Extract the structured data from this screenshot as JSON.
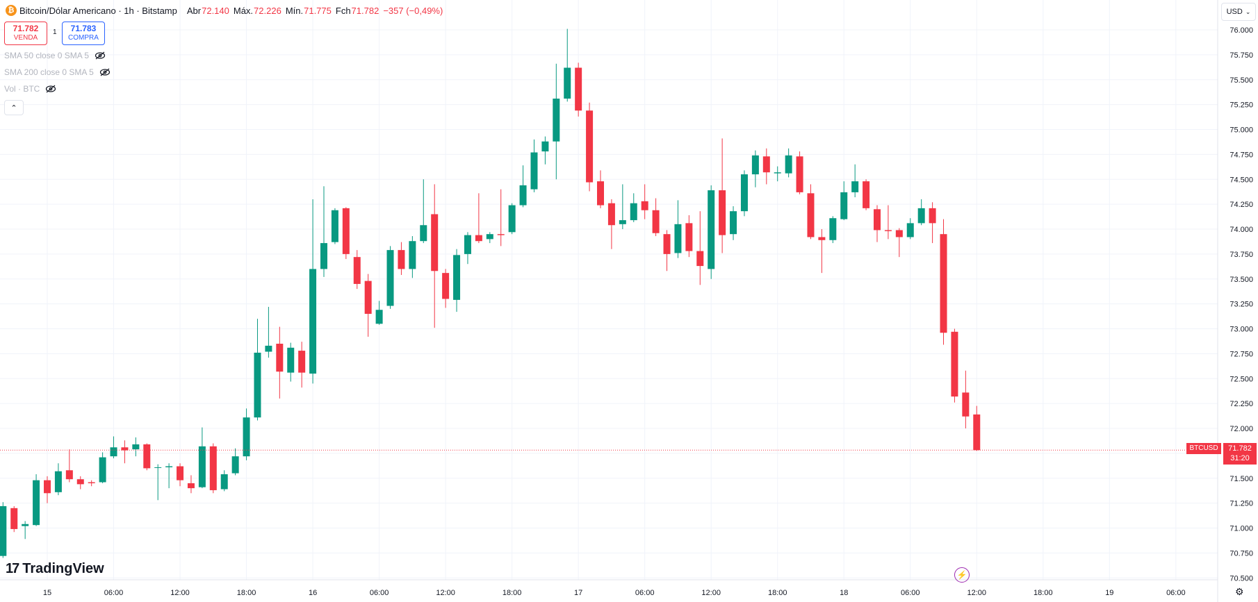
{
  "header": {
    "coin_glyph": "₿",
    "symbol_title": "Bitcoin/Dólar Americano · 1h · Bitstamp",
    "open_label": "Abr",
    "open_value": "72.140",
    "high_label": "Máx.",
    "high_value": "72.226",
    "low_label": "Mín.",
    "low_value": "71.775",
    "close_label": "Fch",
    "close_value": "71.782",
    "change": "−357 (−0,49%)"
  },
  "quotes": {
    "sell_price": "71.782",
    "sell_label": "VENDA",
    "spread": "1",
    "buy_price": "71.783",
    "buy_label": "COMPRA"
  },
  "indicators": [
    "SMA 50 close 0 SMA 5",
    "SMA 200 close 0 SMA 5",
    "Vol · BTC"
  ],
  "collapse_glyph": "⌃",
  "currency_selector": "USD",
  "brand": {
    "mark": "17",
    "name": "TradingView"
  },
  "last_price_tag": {
    "symbol": "BTCUSD",
    "price": "71.782",
    "countdown": "31:20"
  },
  "colors": {
    "up": "#089981",
    "down": "#f23645",
    "grid": "#f0f3fa",
    "text": "#131722"
  },
  "chart_data": {
    "type": "candlestick",
    "interval": "1h",
    "ylim": [
      70500,
      76100
    ],
    "y_ticks": [
      70500,
      70750,
      71000,
      71250,
      71500,
      71750,
      72000,
      72250,
      72500,
      72750,
      73000,
      73250,
      73500,
      73750,
      74000,
      74250,
      74500,
      74750,
      75000,
      75250,
      75500,
      75750,
      76000
    ],
    "y_tick_labels": [
      "70.500",
      "70.750",
      "71.000",
      "71.250",
      "71.500",
      "71.750",
      "72.000",
      "72.250",
      "72.500",
      "72.750",
      "73.000",
      "73.250",
      "73.500",
      "73.750",
      "74.000",
      "74.250",
      "74.500",
      "74.750",
      "75.000",
      "75.250",
      "75.500",
      "75.750",
      "76.000"
    ],
    "x_tick_labels": [
      "15",
      "06:00",
      "12:00",
      "18:00",
      "16",
      "06:00",
      "12:00",
      "18:00",
      "17",
      "06:00",
      "12:00",
      "18:00",
      "18",
      "06:00",
      "12:00",
      "18:00",
      "19",
      "06:00"
    ],
    "x_tick_hours": [
      0,
      6,
      12,
      18,
      24,
      30,
      36,
      42,
      48,
      54,
      60,
      66,
      72,
      78,
      84,
      90,
      96,
      102
    ],
    "last_price": 71782,
    "candles": [
      {
        "h": -4,
        "o": 70720,
        "c": 71220,
        "hi": 71260,
        "lo": 70700
      },
      {
        "h": -3,
        "o": 71200,
        "c": 70990,
        "hi": 71220,
        "lo": 70960
      },
      {
        "h": -2,
        "o": 71020,
        "c": 71040,
        "hi": 71070,
        "lo": 70890
      },
      {
        "h": -1,
        "o": 71030,
        "c": 71480,
        "hi": 71540,
        "lo": 71020
      },
      {
        "h": 0,
        "o": 71480,
        "c": 71350,
        "hi": 71520,
        "lo": 71250
      },
      {
        "h": 1,
        "o": 71360,
        "c": 71570,
        "hi": 71650,
        "lo": 71330
      },
      {
        "h": 2,
        "o": 71580,
        "c": 71490,
        "hi": 71790,
        "lo": 71460
      },
      {
        "h": 3,
        "o": 71490,
        "c": 71440,
        "hi": 71520,
        "lo": 71390
      },
      {
        "h": 4,
        "o": 71460,
        "c": 71450,
        "hi": 71480,
        "lo": 71420
      },
      {
        "h": 5,
        "o": 71460,
        "c": 71710,
        "hi": 71760,
        "lo": 71450
      },
      {
        "h": 6,
        "o": 71720,
        "c": 71810,
        "hi": 71920,
        "lo": 71700
      },
      {
        "h": 7,
        "o": 71810,
        "c": 71780,
        "hi": 71880,
        "lo": 71650
      },
      {
        "h": 8,
        "o": 71790,
        "c": 71840,
        "hi": 71910,
        "lo": 71720
      },
      {
        "h": 9,
        "o": 71840,
        "c": 71600,
        "hi": 71850,
        "lo": 71580
      },
      {
        "h": 10,
        "o": 71610,
        "c": 71610,
        "hi": 71640,
        "lo": 71280
      },
      {
        "h": 11,
        "o": 71610,
        "c": 71620,
        "hi": 71650,
        "lo": 71400
      },
      {
        "h": 12,
        "o": 71620,
        "c": 71480,
        "hi": 71650,
        "lo": 71420
      },
      {
        "h": 13,
        "o": 71450,
        "c": 71400,
        "hi": 71530,
        "lo": 71350
      },
      {
        "h": 14,
        "o": 71410,
        "c": 71820,
        "hi": 72010,
        "lo": 71400
      },
      {
        "h": 15,
        "o": 71820,
        "c": 71380,
        "hi": 71850,
        "lo": 71350
      },
      {
        "h": 16,
        "o": 71390,
        "c": 71540,
        "hi": 71580,
        "lo": 71370
      },
      {
        "h": 17,
        "o": 71550,
        "c": 71720,
        "hi": 71800,
        "lo": 71530
      },
      {
        "h": 18,
        "o": 71720,
        "c": 72110,
        "hi": 72200,
        "lo": 71680
      },
      {
        "h": 19,
        "o": 72110,
        "c": 72760,
        "hi": 73100,
        "lo": 72080
      },
      {
        "h": 20,
        "o": 72770,
        "c": 72830,
        "hi": 73220,
        "lo": 72710
      },
      {
        "h": 21,
        "o": 72850,
        "c": 72570,
        "hi": 73020,
        "lo": 72300
      },
      {
        "h": 22,
        "o": 72560,
        "c": 72810,
        "hi": 72860,
        "lo": 72470
      },
      {
        "h": 23,
        "o": 72780,
        "c": 72560,
        "hi": 72870,
        "lo": 72410
      },
      {
        "h": 24,
        "o": 72550,
        "c": 73600,
        "hi": 74300,
        "lo": 72450
      },
      {
        "h": 25,
        "o": 73600,
        "c": 73860,
        "hi": 74430,
        "lo": 73520
      },
      {
        "h": 26,
        "o": 73870,
        "c": 74190,
        "hi": 74210,
        "lo": 73850
      },
      {
        "h": 27,
        "o": 74210,
        "c": 73750,
        "hi": 74220,
        "lo": 73700
      },
      {
        "h": 28,
        "o": 73720,
        "c": 73450,
        "hi": 73790,
        "lo": 73400
      },
      {
        "h": 29,
        "o": 73480,
        "c": 73150,
        "hi": 73550,
        "lo": 72920
      },
      {
        "h": 30,
        "o": 73050,
        "c": 73190,
        "hi": 73280,
        "lo": 73040
      },
      {
        "h": 31,
        "o": 73230,
        "c": 73790,
        "hi": 73830,
        "lo": 73200
      },
      {
        "h": 32,
        "o": 73790,
        "c": 73600,
        "hi": 73870,
        "lo": 73540
      },
      {
        "h": 33,
        "o": 73600,
        "c": 73880,
        "hi": 73930,
        "lo": 73510
      },
      {
        "h": 34,
        "o": 73880,
        "c": 74040,
        "hi": 74500,
        "lo": 73860
      },
      {
        "h": 35,
        "o": 74150,
        "c": 73580,
        "hi": 74450,
        "lo": 73010
      },
      {
        "h": 36,
        "o": 73560,
        "c": 73300,
        "hi": 73600,
        "lo": 73210
      },
      {
        "h": 37,
        "o": 73290,
        "c": 73740,
        "hi": 73800,
        "lo": 73170
      },
      {
        "h": 38,
        "o": 73750,
        "c": 73940,
        "hi": 73970,
        "lo": 73650
      },
      {
        "h": 39,
        "o": 73940,
        "c": 73880,
        "hi": 74360,
        "lo": 73860
      },
      {
        "h": 40,
        "o": 73900,
        "c": 73950,
        "hi": 73970,
        "lo": 73860
      },
      {
        "h": 41,
        "o": 73950,
        "c": 73940,
        "hi": 74400,
        "lo": 73830
      },
      {
        "h": 42,
        "o": 73970,
        "c": 74240,
        "hi": 74260,
        "lo": 73950
      },
      {
        "h": 43,
        "o": 74240,
        "c": 74440,
        "hi": 74640,
        "lo": 74220
      },
      {
        "h": 44,
        "o": 74400,
        "c": 74770,
        "hi": 74900,
        "lo": 74370
      },
      {
        "h": 45,
        "o": 74780,
        "c": 74880,
        "hi": 74930,
        "lo": 74650
      },
      {
        "h": 46,
        "o": 74880,
        "c": 75310,
        "hi": 75660,
        "lo": 74500
      },
      {
        "h": 47,
        "o": 75310,
        "c": 75620,
        "hi": 76010,
        "lo": 75280
      },
      {
        "h": 48,
        "o": 75620,
        "c": 75190,
        "hi": 75670,
        "lo": 75130
      },
      {
        "h": 49,
        "o": 75190,
        "c": 74470,
        "hi": 75270,
        "lo": 74380
      },
      {
        "h": 50,
        "o": 74480,
        "c": 74240,
        "hi": 74590,
        "lo": 74210
      },
      {
        "h": 51,
        "o": 74260,
        "c": 74040,
        "hi": 74300,
        "lo": 73800
      },
      {
        "h": 52,
        "o": 74050,
        "c": 74090,
        "hi": 74450,
        "lo": 74000
      },
      {
        "h": 53,
        "o": 74090,
        "c": 74260,
        "hi": 74360,
        "lo": 74070
      },
      {
        "h": 54,
        "o": 74280,
        "c": 74190,
        "hi": 74450,
        "lo": 74100
      },
      {
        "h": 55,
        "o": 74190,
        "c": 73960,
        "hi": 74310,
        "lo": 73930
      },
      {
        "h": 56,
        "o": 73950,
        "c": 73750,
        "hi": 73990,
        "lo": 73580
      },
      {
        "h": 57,
        "o": 73760,
        "c": 74050,
        "hi": 74290,
        "lo": 73710
      },
      {
        "h": 58,
        "o": 74060,
        "c": 73780,
        "hi": 74140,
        "lo": 73720
      },
      {
        "h": 59,
        "o": 73780,
        "c": 73630,
        "hi": 74180,
        "lo": 73440
      },
      {
        "h": 60,
        "o": 73600,
        "c": 74390,
        "hi": 74440,
        "lo": 73500
      },
      {
        "h": 61,
        "o": 74390,
        "c": 73940,
        "hi": 74910,
        "lo": 73760
      },
      {
        "h": 62,
        "o": 73950,
        "c": 74180,
        "hi": 74230,
        "lo": 73890
      },
      {
        "h": 63,
        "o": 74180,
        "c": 74550,
        "hi": 74590,
        "lo": 74130
      },
      {
        "h": 64,
        "o": 74550,
        "c": 74740,
        "hi": 74790,
        "lo": 74420
      },
      {
        "h": 65,
        "o": 74730,
        "c": 74570,
        "hi": 74810,
        "lo": 74450
      },
      {
        "h": 66,
        "o": 74560,
        "c": 74570,
        "hi": 74630,
        "lo": 74480
      },
      {
        "h": 67,
        "o": 74560,
        "c": 74740,
        "hi": 74810,
        "lo": 74520
      },
      {
        "h": 68,
        "o": 74730,
        "c": 74370,
        "hi": 74780,
        "lo": 74350
      },
      {
        "h": 69,
        "o": 74360,
        "c": 73920,
        "hi": 74450,
        "lo": 73900
      },
      {
        "h": 70,
        "o": 73920,
        "c": 73890,
        "hi": 74000,
        "lo": 73560
      },
      {
        "h": 71,
        "o": 73890,
        "c": 74110,
        "hi": 74130,
        "lo": 73860
      },
      {
        "h": 72,
        "o": 74100,
        "c": 74370,
        "hi": 74480,
        "lo": 74090
      },
      {
        "h": 73,
        "o": 74370,
        "c": 74480,
        "hi": 74650,
        "lo": 74320
      },
      {
        "h": 74,
        "o": 74480,
        "c": 74210,
        "hi": 74500,
        "lo": 74190
      },
      {
        "h": 75,
        "o": 74200,
        "c": 73990,
        "hi": 74240,
        "lo": 73870
      },
      {
        "h": 76,
        "o": 73990,
        "c": 73980,
        "hi": 74240,
        "lo": 73900
      },
      {
        "h": 77,
        "o": 73990,
        "c": 73920,
        "hi": 74010,
        "lo": 73720
      },
      {
        "h": 78,
        "o": 73920,
        "c": 74060,
        "hi": 74110,
        "lo": 73900
      },
      {
        "h": 79,
        "o": 74060,
        "c": 74210,
        "hi": 74300,
        "lo": 74040
      },
      {
        "h": 80,
        "o": 74210,
        "c": 74060,
        "hi": 74270,
        "lo": 73860
      },
      {
        "h": 81,
        "o": 73950,
        "c": 72960,
        "hi": 74100,
        "lo": 72840
      },
      {
        "h": 82,
        "o": 72970,
        "c": 72320,
        "hi": 73000,
        "lo": 72260
      },
      {
        "h": 83,
        "o": 72360,
        "c": 72120,
        "hi": 72580,
        "lo": 72000
      },
      {
        "h": 84,
        "o": 72140,
        "c": 71782,
        "hi": 72226,
        "lo": 71775
      }
    ]
  }
}
